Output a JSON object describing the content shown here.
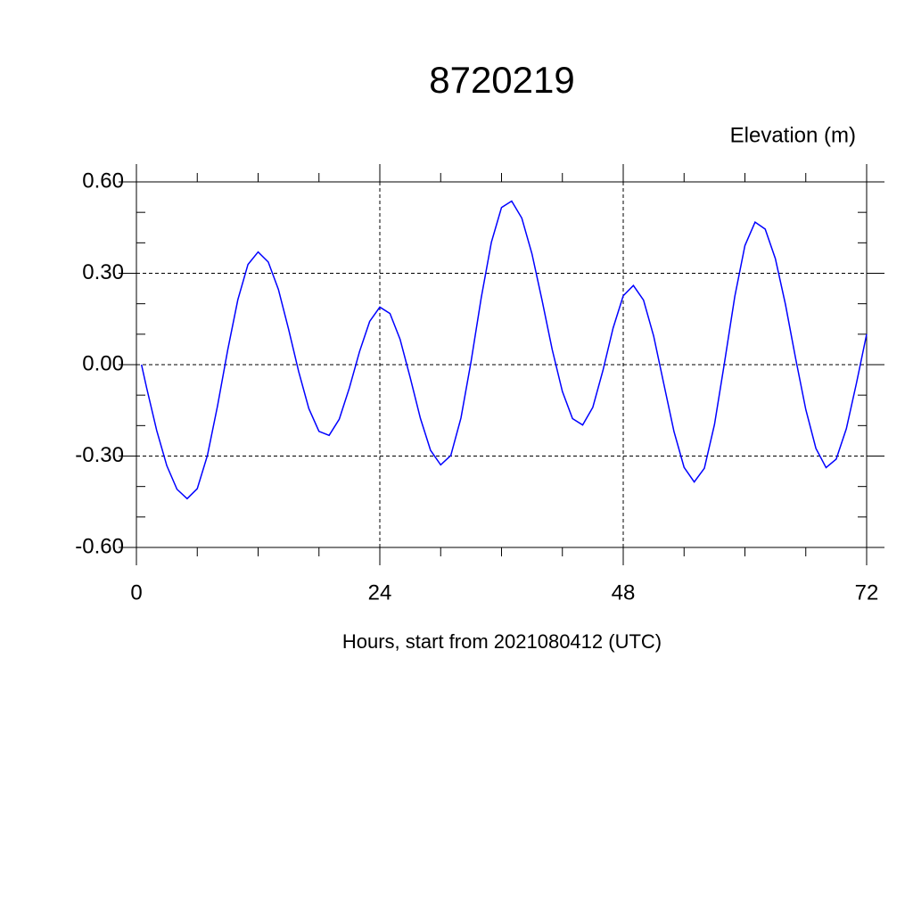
{
  "chart_data": {
    "type": "line",
    "title": "8720219",
    "y_axis_label": "Elevation (m)",
    "x_axis_label": "Hours, start from 2021080412 (UTC)",
    "x": [
      0.5,
      1,
      2,
      3,
      4,
      5,
      6,
      7,
      8,
      9,
      10,
      11,
      12,
      13,
      14,
      15,
      16,
      17,
      18,
      19,
      20,
      21,
      22,
      23,
      24,
      25,
      26,
      27,
      28,
      29,
      30,
      31,
      32,
      33,
      34,
      35,
      36,
      37,
      38,
      39,
      40,
      41,
      42,
      43,
      44,
      45,
      46,
      47,
      48,
      49,
      50,
      51,
      52,
      53,
      54,
      55,
      56,
      57,
      58,
      59,
      60,
      61,
      62,
      63,
      64,
      65,
      66,
      67,
      68,
      69,
      70,
      71,
      72
    ],
    "series": [
      {
        "color": "#0000ff",
        "values": [
          0.0,
          -0.075,
          -0.216,
          -0.332,
          -0.409,
          -0.44,
          -0.407,
          -0.298,
          -0.135,
          0.048,
          0.213,
          0.329,
          0.37,
          0.337,
          0.247,
          0.117,
          -0.023,
          -0.144,
          -0.219,
          -0.232,
          -0.179,
          -0.076,
          0.043,
          0.142,
          0.189,
          0.168,
          0.083,
          -0.043,
          -0.176,
          -0.281,
          -0.329,
          -0.298,
          -0.175,
          0.011,
          0.22,
          0.402,
          0.516,
          0.537,
          0.481,
          0.364,
          0.211,
          0.049,
          -0.088,
          -0.177,
          -0.198,
          -0.14,
          -0.019,
          0.12,
          0.226,
          0.26,
          0.212,
          0.094,
          -0.063,
          -0.219,
          -0.337,
          -0.385,
          -0.34,
          -0.196,
          0.01,
          0.224,
          0.391,
          0.468,
          0.445,
          0.348,
          0.197,
          0.02,
          -0.147,
          -0.275,
          -0.338,
          -0.31,
          -0.21,
          -0.06,
          0.1
        ]
      }
    ],
    "xlim": [
      0,
      72
    ],
    "xticks": [
      0,
      24,
      48,
      72
    ],
    "ylim": [
      -0.6,
      0.6
    ],
    "yticks": [
      {
        "value": -0.6,
        "label": "-0.60"
      },
      {
        "value": -0.3,
        "label": "-0.30"
      },
      {
        "value": 0,
        "label": "0.00"
      },
      {
        "value": 0.3,
        "label": "0.30"
      },
      {
        "value": 0.6,
        "label": "0.60"
      }
    ],
    "grid": true
  }
}
